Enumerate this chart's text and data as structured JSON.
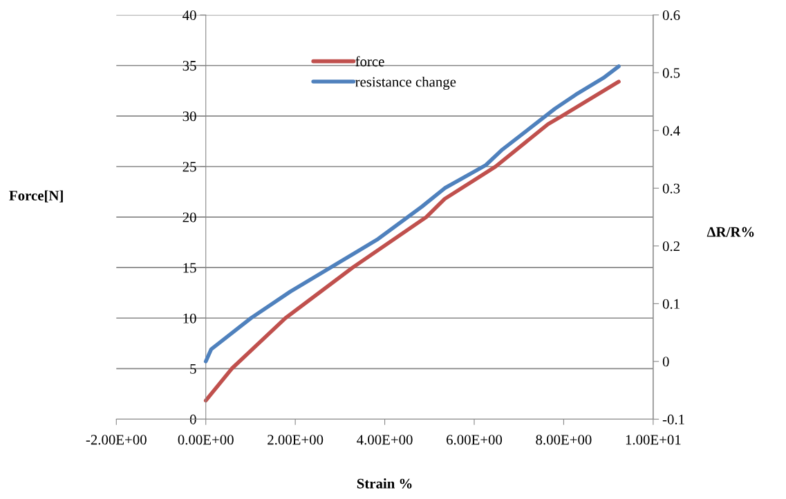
{
  "chart_data": {
    "type": "line",
    "xlabel": "Strain %",
    "ylabel": "Force[N]",
    "y2label": "ΔR/R%",
    "series": [
      {
        "name": "force",
        "color": "#c0504d",
        "x": [
          0,
          0.58,
          1.78,
          3.28,
          4.93,
          5.34,
          6.48,
          7.65,
          7.96,
          9.23
        ],
        "values": [
          1.84,
          5,
          10,
          15,
          20,
          21.8,
          25,
          29.2,
          30,
          33.4
        ]
      },
      {
        "name": "resistance change",
        "color": "#4f81bd",
        "axis": "y2",
        "x": [
          0,
          0.12,
          1.01,
          1.89,
          2.82,
          3.85,
          4.83,
          5.34,
          6.26,
          6.63,
          7.81,
          8.27,
          8.89,
          9.23
        ],
        "values": [
          0.0,
          0.021,
          0.075,
          0.121,
          0.164,
          0.212,
          0.268,
          0.3,
          0.34,
          0.367,
          0.438,
          0.462,
          0.491,
          0.511
        ]
      }
    ],
    "xlim": [
      -2,
      10
    ],
    "xticks": [
      {
        "value": -2,
        "label": "-2.00E+00"
      },
      {
        "value": 0,
        "label": "0.00E+00"
      },
      {
        "value": 2,
        "label": "2.00E+00"
      },
      {
        "value": 4,
        "label": "4.00E+00"
      },
      {
        "value": 6,
        "label": "6.00E+00"
      },
      {
        "value": 8,
        "label": "8.00E+00"
      },
      {
        "value": 10,
        "label": "1.00E+01"
      }
    ],
    "ylim": [
      0,
      40
    ],
    "yticks": [
      0,
      5,
      10,
      15,
      20,
      25,
      30,
      35,
      40
    ],
    "y2lim": [
      -0.1,
      0.6
    ],
    "y2ticks": [
      -0.1,
      0,
      0.1,
      0.2,
      0.3,
      0.4,
      0.5,
      0.6
    ],
    "grid": "y",
    "legend": "top",
    "marker": "none",
    "line_style": "solid"
  }
}
